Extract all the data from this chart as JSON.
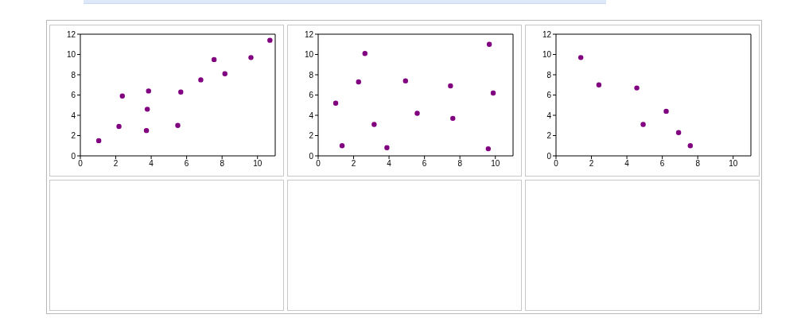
{
  "chart_data": [
    {
      "type": "scatter",
      "x": [
        1.04,
        2.18,
        2.37,
        3.73,
        3.78,
        3.85,
        5.5,
        5.67,
        6.8,
        7.55,
        8.16,
        9.63,
        10.7
      ],
      "values": [
        1.5,
        2.9,
        5.9,
        2.5,
        4.6,
        6.4,
        3.0,
        6.3,
        7.5,
        9.5,
        8.1,
        9.7,
        11.4
      ],
      "color": "#800080",
      "marker": "circle",
      "xlim": [
        0,
        11
      ],
      "xticks": [
        0,
        2,
        4,
        6,
        8,
        10
      ],
      "ylim": [
        0,
        12
      ],
      "yticks": [
        0,
        2,
        4,
        6,
        8,
        10,
        12
      ]
    },
    {
      "type": "scatter",
      "x": [
        0.99,
        1.35,
        2.28,
        2.64,
        3.16,
        3.88,
        4.93,
        5.59,
        7.47,
        7.6,
        9.6,
        9.66,
        9.88
      ],
      "values": [
        5.2,
        1.0,
        7.3,
        10.1,
        3.1,
        0.8,
        7.4,
        4.2,
        6.9,
        3.7,
        0.7,
        11.0,
        6.2
      ],
      "color": "#800080",
      "marker": "circle",
      "xlim": [
        0,
        11
      ],
      "xticks": [
        0,
        2,
        4,
        6,
        8,
        10
      ],
      "ylim": [
        0,
        12
      ],
      "yticks": [
        0,
        2,
        4,
        6,
        8,
        10,
        12
      ]
    },
    {
      "type": "scatter",
      "x": [
        1.4,
        2.42,
        4.56,
        4.92,
        6.22,
        6.92,
        7.58
      ],
      "values": [
        9.7,
        7.0,
        6.7,
        3.1,
        4.4,
        2.3,
        1.0
      ],
      "color": "#800080",
      "marker": "circle",
      "xlim": [
        0,
        11
      ],
      "xticks": [
        0,
        2,
        4,
        6,
        8,
        10
      ],
      "ylim": [
        0,
        12
      ],
      "yticks": [
        0,
        2,
        4,
        6,
        8,
        10,
        12
      ]
    }
  ]
}
